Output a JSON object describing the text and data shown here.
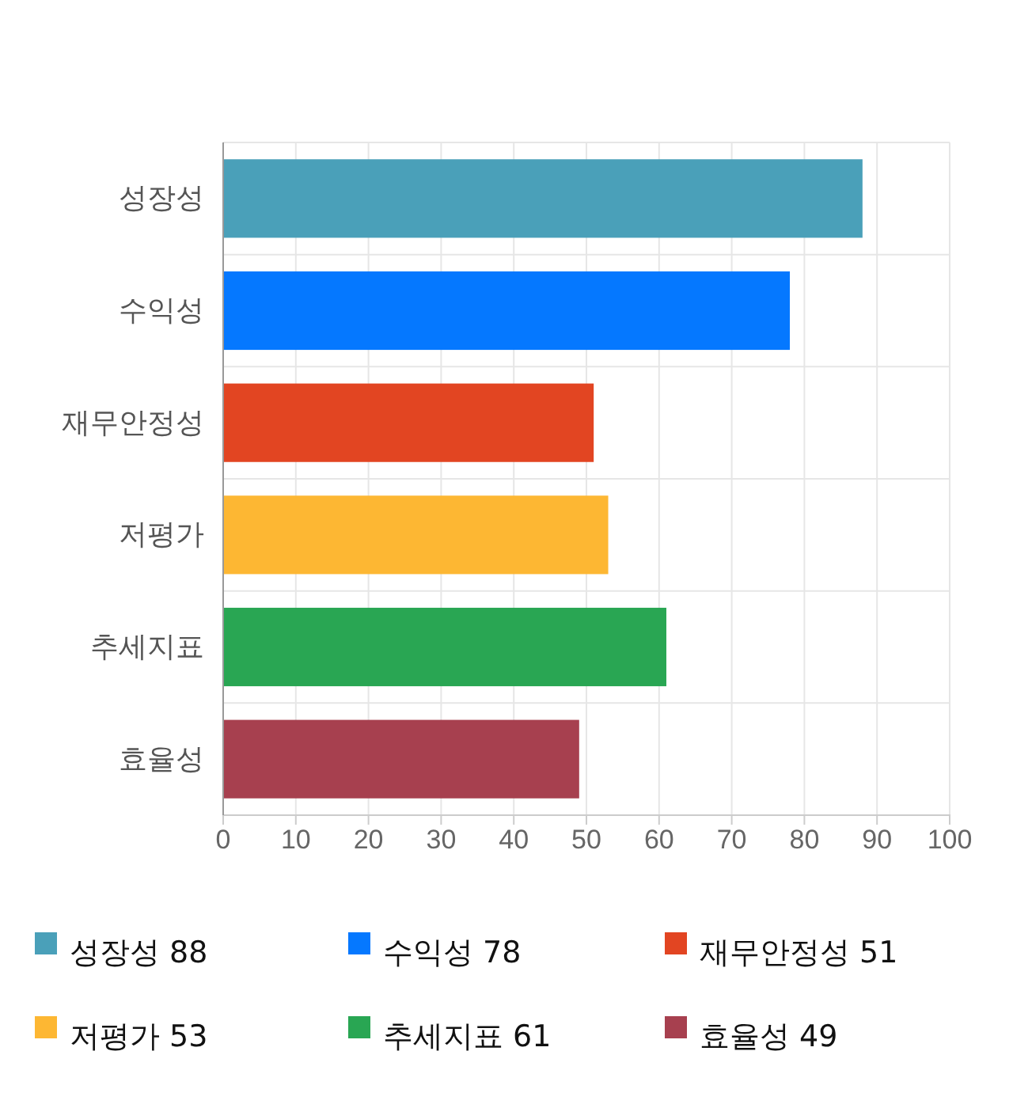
{
  "chart_data": {
    "type": "bar",
    "orientation": "horizontal",
    "stacked": true,
    "categories": [
      "성장성",
      "수익성",
      "재무안정성",
      "저평가",
      "추세지표",
      "효율성"
    ],
    "series": [
      {
        "name": "성장성 88",
        "color": "#4aa0b9",
        "values": [
          88,
          null,
          null,
          null,
          null,
          null
        ]
      },
      {
        "name": "수익성 78",
        "color": "#0578ff",
        "values": [
          null,
          78,
          null,
          null,
          null,
          null
        ]
      },
      {
        "name": "재무안정성 51",
        "color": "#e24522",
        "values": [
          null,
          null,
          51,
          null,
          null,
          null
        ]
      },
      {
        "name": "저평가 53",
        "color": "#fdb733",
        "values": [
          null,
          null,
          null,
          53,
          null,
          null
        ]
      },
      {
        "name": "추세지표 61",
        "color": "#29a653",
        "values": [
          null,
          null,
          null,
          null,
          61,
          null
        ]
      },
      {
        "name": "효율성 49",
        "color": "#a7404f",
        "values": [
          null,
          null,
          null,
          null,
          null,
          49
        ]
      }
    ],
    "xlim": [
      0,
      100
    ],
    "xticks": [
      0,
      10,
      20,
      30,
      40,
      50,
      60,
      70,
      80,
      90,
      100
    ],
    "grid": true,
    "legend": "bottom"
  }
}
